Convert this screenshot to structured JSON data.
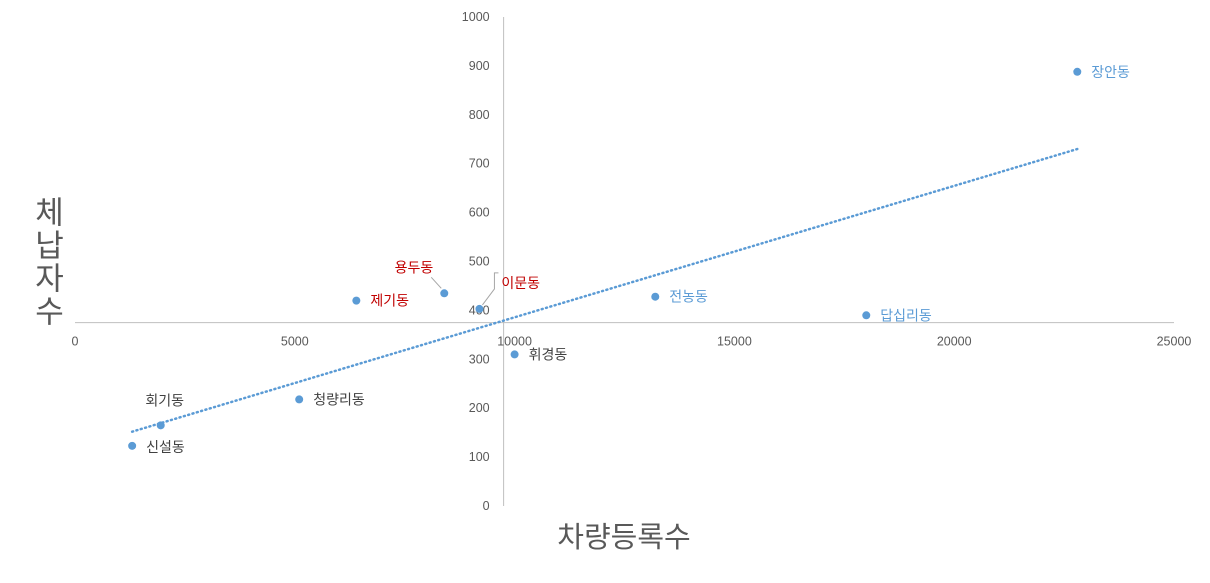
{
  "chart_data": {
    "type": "scatter",
    "title": "",
    "xlabel": "차량등록수",
    "ylabel": "체납자수",
    "xlim": [
      0,
      25000
    ],
    "ylim": [
      0,
      1000
    ],
    "x_ticks": [
      "0",
      "5000",
      "10000",
      "15000",
      "20000",
      "25000"
    ],
    "y_ticks": [
      "0",
      "100",
      "200",
      "300",
      "400",
      "500",
      "600",
      "700",
      "800",
      "900",
      "1000"
    ],
    "x_axis_crosses_y_at": 375,
    "y_axis_crosses_x_at": 9750,
    "grid": false,
    "legend": "none",
    "trendline": {
      "type": "linear",
      "style": "dotted",
      "x_range": [
        1300,
        22800
      ],
      "y_start": 152,
      "y_end": 730,
      "color": "#5B9BD5"
    },
    "points": [
      {
        "label": "장안동",
        "x": 22800,
        "y": 888,
        "label_color": "#5B9BD5"
      },
      {
        "label": "전농동",
        "x": 13200,
        "y": 428,
        "label_color": "#5B9BD5"
      },
      {
        "label": "답십리동",
        "x": 18000,
        "y": 390,
        "label_color": "#5B9BD5"
      },
      {
        "label": "용두동",
        "x": 8400,
        "y": 435,
        "label_color": "#C00000"
      },
      {
        "label": "제기동",
        "x": 6400,
        "y": 420,
        "label_color": "#C00000"
      },
      {
        "label": "이문동",
        "x": 9200,
        "y": 403,
        "label_color": "#C00000"
      },
      {
        "label": "휘경동",
        "x": 10000,
        "y": 310,
        "label_color": "#404040"
      },
      {
        "label": "청량리동",
        "x": 5100,
        "y": 218,
        "label_color": "#404040"
      },
      {
        "label": "회기동",
        "x": 1950,
        "y": 165,
        "label_color": "#404040"
      },
      {
        "label": "신설동",
        "x": 1300,
        "y": 123,
        "label_color": "#404040"
      }
    ],
    "colors": {
      "marker": "#5B9BD5",
      "axis": "#BFBFBF"
    }
  }
}
